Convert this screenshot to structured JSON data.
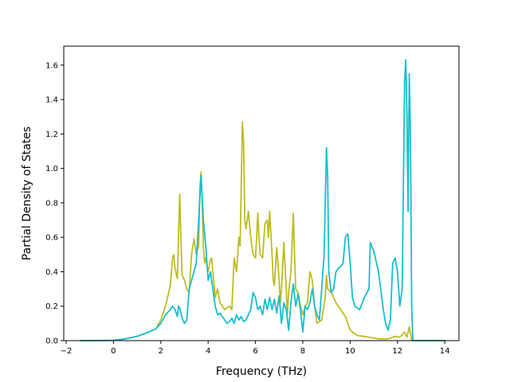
{
  "chart_data": {
    "type": "line",
    "title": "",
    "xlabel": "Frequency (THz)",
    "ylabel": "Partial Density of States",
    "xlim": [
      -2.1,
      14.6
    ],
    "ylim": [
      0.0,
      1.71
    ],
    "xticks": [
      -2,
      0,
      2,
      4,
      6,
      8,
      10,
      12,
      14
    ],
    "yticks": [
      0.0,
      0.2,
      0.4,
      0.6,
      0.8,
      1.0,
      1.2,
      1.4,
      1.6
    ],
    "xtick_labels": [
      "−2",
      "0",
      "2",
      "4",
      "6",
      "8",
      "10",
      "12",
      "14"
    ],
    "ytick_labels": [
      "0.0",
      "0.2",
      "0.4",
      "0.6",
      "0.8",
      "1.0",
      "1.2",
      "1.4",
      "1.6"
    ],
    "grid": false,
    "legend": false,
    "series": [
      {
        "color": "#bcbd22",
        "points": [
          [
            -1.4,
            0.0
          ],
          [
            -0.6,
            0.0
          ],
          [
            0.0,
            0.002
          ],
          [
            0.5,
            0.01
          ],
          [
            1.0,
            0.025
          ],
          [
            1.5,
            0.05
          ],
          [
            1.8,
            0.07
          ],
          [
            2.0,
            0.12
          ],
          [
            2.2,
            0.2
          ],
          [
            2.4,
            0.32
          ],
          [
            2.5,
            0.48
          ],
          [
            2.55,
            0.5
          ],
          [
            2.6,
            0.42
          ],
          [
            2.7,
            0.36
          ],
          [
            2.75,
            0.6
          ],
          [
            2.8,
            0.85
          ],
          [
            2.85,
            0.6
          ],
          [
            2.9,
            0.38
          ],
          [
            3.0,
            0.35
          ],
          [
            3.1,
            0.3
          ],
          [
            3.2,
            0.28
          ],
          [
            3.3,
            0.5
          ],
          [
            3.4,
            0.59
          ],
          [
            3.5,
            0.5
          ],
          [
            3.6,
            0.55
          ],
          [
            3.65,
            0.88
          ],
          [
            3.7,
            0.98
          ],
          [
            3.75,
            0.8
          ],
          [
            3.8,
            0.55
          ],
          [
            3.85,
            0.45
          ],
          [
            3.9,
            0.48
          ],
          [
            4.0,
            0.4
          ],
          [
            4.1,
            0.47
          ],
          [
            4.15,
            0.48
          ],
          [
            4.2,
            0.4
          ],
          [
            4.3,
            0.25
          ],
          [
            4.4,
            0.3
          ],
          [
            4.5,
            0.22
          ],
          [
            4.6,
            0.2
          ],
          [
            4.7,
            0.18
          ],
          [
            4.8,
            0.19
          ],
          [
            4.9,
            0.2
          ],
          [
            5.0,
            0.18
          ],
          [
            5.1,
            0.48
          ],
          [
            5.2,
            0.4
          ],
          [
            5.3,
            0.6
          ],
          [
            5.35,
            0.55
          ],
          [
            5.45,
            1.27
          ],
          [
            5.5,
            1.15
          ],
          [
            5.55,
            0.7
          ],
          [
            5.6,
            0.65
          ],
          [
            5.7,
            0.75
          ],
          [
            5.8,
            0.6
          ],
          [
            5.9,
            0.5
          ],
          [
            6.0,
            0.48
          ],
          [
            6.05,
            0.6
          ],
          [
            6.1,
            0.74
          ],
          [
            6.15,
            0.6
          ],
          [
            6.2,
            0.5
          ],
          [
            6.3,
            0.48
          ],
          [
            6.4,
            0.68
          ],
          [
            6.5,
            0.7
          ],
          [
            6.55,
            0.6
          ],
          [
            6.6,
            0.75
          ],
          [
            6.7,
            0.5
          ],
          [
            6.75,
            0.35
          ],
          [
            6.8,
            0.32
          ],
          [
            6.9,
            0.54
          ],
          [
            7.0,
            0.35
          ],
          [
            7.05,
            0.22
          ],
          [
            7.1,
            0.3
          ],
          [
            7.2,
            0.57
          ],
          [
            7.3,
            0.3
          ],
          [
            7.35,
            0.15
          ],
          [
            7.4,
            0.28
          ],
          [
            7.5,
            0.4
          ],
          [
            7.6,
            0.74
          ],
          [
            7.65,
            0.5
          ],
          [
            7.7,
            0.3
          ],
          [
            7.8,
            0.28
          ],
          [
            7.9,
            0.2
          ],
          [
            8.0,
            0.15
          ],
          [
            8.1,
            0.2
          ],
          [
            8.2,
            0.22
          ],
          [
            8.3,
            0.4
          ],
          [
            8.4,
            0.35
          ],
          [
            8.5,
            0.2
          ],
          [
            8.6,
            0.1
          ],
          [
            8.8,
            0.12
          ],
          [
            8.95,
            0.25
          ],
          [
            9.0,
            0.38
          ],
          [
            9.05,
            0.3
          ],
          [
            9.2,
            0.28
          ],
          [
            9.4,
            0.22
          ],
          [
            9.6,
            0.18
          ],
          [
            9.8,
            0.14
          ],
          [
            10.0,
            0.06
          ],
          [
            10.3,
            0.03
          ],
          [
            10.8,
            0.02
          ],
          [
            11.2,
            0.01
          ],
          [
            11.6,
            0.01
          ],
          [
            11.9,
            0.025
          ],
          [
            12.1,
            0.02
          ],
          [
            12.3,
            0.05
          ],
          [
            12.4,
            0.02
          ],
          [
            12.5,
            0.08
          ],
          [
            12.6,
            0.0
          ],
          [
            14.0,
            0.0
          ]
        ]
      },
      {
        "color": "#17becf",
        "points": [
          [
            -1.4,
            0.0
          ],
          [
            -0.6,
            0.0
          ],
          [
            0.0,
            0.002
          ],
          [
            0.5,
            0.01
          ],
          [
            1.0,
            0.025
          ],
          [
            1.5,
            0.05
          ],
          [
            1.8,
            0.07
          ],
          [
            2.0,
            0.1
          ],
          [
            2.2,
            0.15
          ],
          [
            2.4,
            0.18
          ],
          [
            2.5,
            0.2
          ],
          [
            2.6,
            0.18
          ],
          [
            2.7,
            0.14
          ],
          [
            2.75,
            0.2
          ],
          [
            2.8,
            0.19
          ],
          [
            2.9,
            0.13
          ],
          [
            3.0,
            0.1
          ],
          [
            3.1,
            0.12
          ],
          [
            3.2,
            0.3
          ],
          [
            3.3,
            0.35
          ],
          [
            3.4,
            0.4
          ],
          [
            3.5,
            0.45
          ],
          [
            3.6,
            0.7
          ],
          [
            3.7,
            0.96
          ],
          [
            3.8,
            0.7
          ],
          [
            3.9,
            0.55
          ],
          [
            4.0,
            0.35
          ],
          [
            4.1,
            0.4
          ],
          [
            4.2,
            0.3
          ],
          [
            4.3,
            0.2
          ],
          [
            4.4,
            0.15
          ],
          [
            4.5,
            0.16
          ],
          [
            4.6,
            0.14
          ],
          [
            4.7,
            0.12
          ],
          [
            4.8,
            0.1
          ],
          [
            4.9,
            0.11
          ],
          [
            5.0,
            0.13
          ],
          [
            5.1,
            0.1
          ],
          [
            5.2,
            0.15
          ],
          [
            5.3,
            0.12
          ],
          [
            5.4,
            0.14
          ],
          [
            5.5,
            0.11
          ],
          [
            5.6,
            0.12
          ],
          [
            5.7,
            0.15
          ],
          [
            5.8,
            0.18
          ],
          [
            5.9,
            0.28
          ],
          [
            6.0,
            0.25
          ],
          [
            6.1,
            0.18
          ],
          [
            6.2,
            0.2
          ],
          [
            6.3,
            0.15
          ],
          [
            6.4,
            0.24
          ],
          [
            6.5,
            0.18
          ],
          [
            6.6,
            0.25
          ],
          [
            6.7,
            0.18
          ],
          [
            6.8,
            0.24
          ],
          [
            6.9,
            0.16
          ],
          [
            7.0,
            0.26
          ],
          [
            7.1,
            0.1
          ],
          [
            7.2,
            0.22
          ],
          [
            7.3,
            0.18
          ],
          [
            7.4,
            0.06
          ],
          [
            7.5,
            0.22
          ],
          [
            7.6,
            0.33
          ],
          [
            7.7,
            0.2
          ],
          [
            7.8,
            0.27
          ],
          [
            7.9,
            0.18
          ],
          [
            8.0,
            0.05
          ],
          [
            8.1,
            0.2
          ],
          [
            8.2,
            0.18
          ],
          [
            8.3,
            0.22
          ],
          [
            8.4,
            0.3
          ],
          [
            8.5,
            0.2
          ],
          [
            8.6,
            0.15
          ],
          [
            8.7,
            0.12
          ],
          [
            8.8,
            0.3
          ],
          [
            8.9,
            0.5
          ],
          [
            9.0,
            1.12
          ],
          [
            9.05,
            0.95
          ],
          [
            9.1,
            0.4
          ],
          [
            9.2,
            0.28
          ],
          [
            9.3,
            0.3
          ],
          [
            9.4,
            0.4
          ],
          [
            9.5,
            0.42
          ],
          [
            9.6,
            0.43
          ],
          [
            9.7,
            0.45
          ],
          [
            9.8,
            0.6
          ],
          [
            9.9,
            0.62
          ],
          [
            10.0,
            0.45
          ],
          [
            10.1,
            0.25
          ],
          [
            10.2,
            0.2
          ],
          [
            10.4,
            0.18
          ],
          [
            10.6,
            0.25
          ],
          [
            10.8,
            0.3
          ],
          [
            10.85,
            0.57
          ],
          [
            11.0,
            0.52
          ],
          [
            11.2,
            0.4
          ],
          [
            11.4,
            0.18
          ],
          [
            11.5,
            0.1
          ],
          [
            11.6,
            0.06
          ],
          [
            11.7,
            0.12
          ],
          [
            11.8,
            0.45
          ],
          [
            11.9,
            0.48
          ],
          [
            12.0,
            0.4
          ],
          [
            12.1,
            0.2
          ],
          [
            12.2,
            0.3
          ],
          [
            12.3,
            1.5
          ],
          [
            12.35,
            1.63
          ],
          [
            12.4,
            1.3
          ],
          [
            12.45,
            0.75
          ],
          [
            12.5,
            1.55
          ],
          [
            12.55,
            1.2
          ],
          [
            12.6,
            0.2
          ],
          [
            12.65,
            0.0
          ],
          [
            14.0,
            0.0
          ]
        ]
      }
    ]
  }
}
